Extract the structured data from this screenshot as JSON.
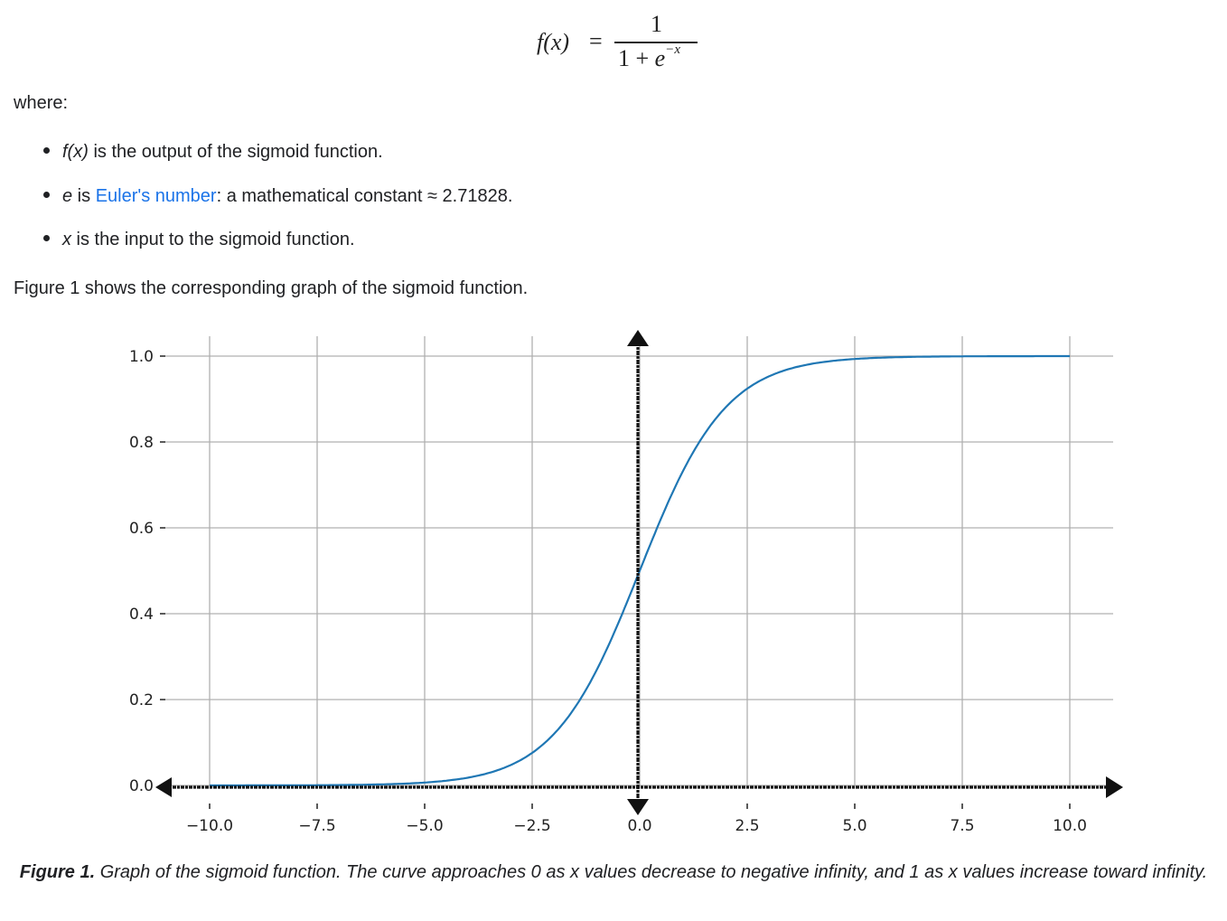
{
  "formula": {
    "lhs": "f(x)",
    "equals": "=",
    "numerator": "1",
    "denominator_base": "1 + ",
    "denominator_e": "e",
    "denominator_exponent": "−x"
  },
  "where_label": "where:",
  "bullets": [
    {
      "term": "f(x)",
      "link": "",
      "text": " is the output of the sigmoid function."
    },
    {
      "term": "e",
      "pre_link": " is ",
      "link": "Euler's number",
      "text": ": a mathematical constant ≈ 2.71828."
    },
    {
      "term": "x",
      "link": "",
      "text": " is the input to the sigmoid function."
    }
  ],
  "figure_intro": "Figure 1 shows the corresponding graph of the sigmoid function.",
  "caption": {
    "label": "Figure 1.",
    "text": " Graph of the sigmoid function. The curve approaches 0 as x values decrease to negative infinity, and 1 as x values increase toward infinity."
  },
  "chart_data": {
    "type": "line",
    "title": "",
    "xlabel": "",
    "ylabel": "",
    "function": "sigmoid f(x) = 1 / (1 + e^-x)",
    "xlim": [
      -10,
      10
    ],
    "ylim": [
      0,
      1
    ],
    "x_ticks": [
      "−10.0",
      "−7.5",
      "−5.0",
      "−2.5",
      "0.0",
      "2.5",
      "5.0",
      "7.5",
      "10.0"
    ],
    "y_ticks": [
      "0.0",
      "0.2",
      "0.4",
      "0.6",
      "0.8",
      "1.0"
    ],
    "grid": true,
    "legend": null,
    "line_color": "#1f77b4",
    "axes_arrows": "black hand-drawn style arrows on x=0 and y=0 axes",
    "series": [
      {
        "name": "sigmoid",
        "x": [
          -10,
          -7.5,
          -5,
          -4,
          -3,
          -2.5,
          -2,
          -1,
          0,
          1,
          2,
          2.5,
          3,
          4,
          5,
          7.5,
          10
        ],
        "values": [
          4.54e-05,
          0.000553,
          0.00669,
          0.018,
          0.0474,
          0.0759,
          0.119,
          0.269,
          0.5,
          0.731,
          0.881,
          0.924,
          0.953,
          0.982,
          0.993,
          0.999,
          1.0
        ]
      }
    ]
  }
}
